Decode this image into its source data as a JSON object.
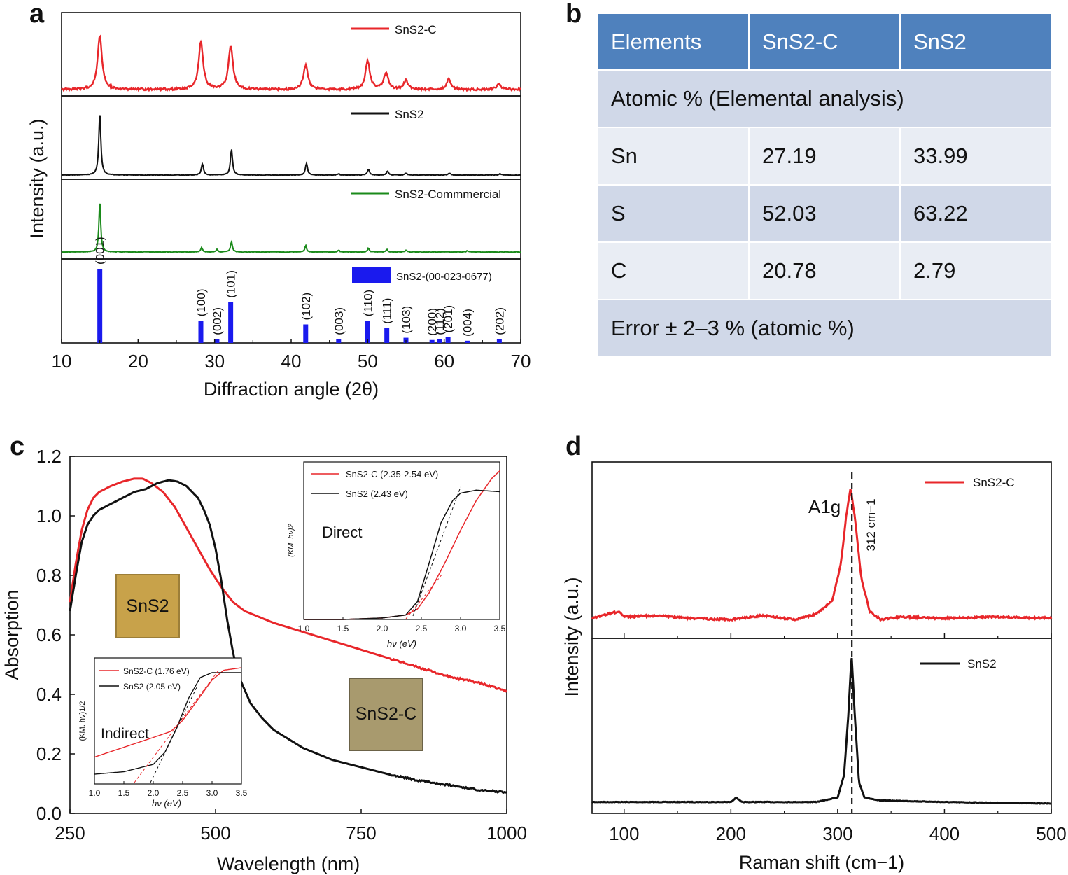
{
  "panel_letters": {
    "a": "a",
    "b": "b",
    "c": "c",
    "d": "d"
  },
  "colors": {
    "red": "#e8262a",
    "black": "#111111",
    "green": "#1a8a1a",
    "blue": "#1a1aee",
    "table_header": "#4f81bd"
  },
  "panel_a": {
    "ylabel": "Intensity (a.u.)",
    "xlabel": "Diffraction angle (2θ)",
    "legend_snsc": "SnS2-C",
    "legend_sns2": "SnS2",
    "legend_comm": "SnS2-Commmercial",
    "legend_ref": "SnS2-(00-023-0677)",
    "xticks": [
      "10",
      "20",
      "30",
      "40",
      "50",
      "60",
      "70"
    ]
  },
  "panel_b": {
    "headers": [
      "Elements",
      "SnS2-C",
      "SnS2"
    ],
    "section_title": "Atomic % (Elemental analysis)",
    "rows": [
      {
        "element": "Sn",
        "snsc": "27.19",
        "sns2": "33.99"
      },
      {
        "element": "S",
        "snsc": "52.03",
        "sns2": "63.22"
      },
      {
        "element": "C",
        "snsc": "20.78",
        "sns2": "2.79"
      }
    ],
    "footer": "Error ± 2–3 % (atomic %)"
  },
  "panel_c": {
    "ylabel": "Absorption",
    "xlabel": "Wavelength (nm)",
    "xticks": [
      "250",
      "500",
      "750",
      "1000"
    ],
    "yticks": [
      "0.0",
      "0.2",
      "0.4",
      "0.6",
      "0.8",
      "1.0",
      "1.2"
    ],
    "photo1_label": "SnS2",
    "photo2_label": "SnS2-C",
    "inset_direct": {
      "legend_red": "SnS2-C (2.35-2.54 eV)",
      "legend_black": "SnS2 (2.43 eV)",
      "label": "Direct",
      "ylabel": "(KM. hν)2",
      "xlabel": "hν (eV)",
      "xticks": [
        "1.0",
        "1.5",
        "2.0",
        "2.5",
        "3.0",
        "3.5"
      ]
    },
    "inset_indirect": {
      "legend_red": "SnS2-C (1.76 eV)",
      "legend_black": "SnS2 (2.05 eV)",
      "label": "Indirect",
      "ylabel": "(KM. hν)1/2",
      "xlabel": "hν (eV)",
      "xticks": [
        "1.0",
        "1.5",
        "2.0",
        "2.5",
        "3.0",
        "3.5"
      ]
    }
  },
  "panel_d": {
    "ylabel": "Intensity (a.u.)",
    "xlabel": "Raman shift (cm−1)",
    "xticks": [
      "100",
      "200",
      "300",
      "400",
      "500"
    ],
    "peak_label": "A1g",
    "peak_pos_label": "312 cm−1",
    "legend_red": "SnS2-C",
    "legend_black": "SnS2"
  },
  "chart_data": [
    {
      "panel": "a",
      "type": "line",
      "title": "",
      "xlabel": "Diffraction angle (2θ)",
      "ylabel": "Intensity (a.u.)",
      "xlim": [
        10,
        70
      ],
      "series": [
        {
          "name": "SnS2-C",
          "peaks_2theta": [
            15.0,
            28.2,
            32.1,
            41.9,
            50.0,
            52.4,
            55.0,
            60.6,
            67.1
          ],
          "rel_heights": [
            0.95,
            0.85,
            0.78,
            0.43,
            0.51,
            0.29,
            0.16,
            0.18,
            0.09
          ]
        },
        {
          "name": "SnS2",
          "peaks_2theta": [
            15.0,
            28.4,
            32.2,
            42.0,
            46.2,
            50.1,
            52.6,
            55.0,
            60.7,
            67.3
          ],
          "rel_heights": [
            0.92,
            0.17,
            0.39,
            0.18,
            0.02,
            0.09,
            0.06,
            0.03,
            0.03,
            0.02
          ]
        },
        {
          "name": "SnS2-Commmercial",
          "peaks_2theta": [
            15.0,
            28.3,
            30.3,
            32.2,
            41.9,
            46.2,
            50.1,
            52.5,
            55.0,
            63.0
          ],
          "rel_heights": [
            0.8,
            0.07,
            0.04,
            0.17,
            0.1,
            0.03,
            0.06,
            0.04,
            0.03,
            0.02
          ]
        },
        {
          "name": "SnS2-(00-023-0677)",
          "type": "bar",
          "positions": [
            15.0,
            28.2,
            30.3,
            32.1,
            41.9,
            46.2,
            50.0,
            52.5,
            55.0,
            58.4,
            59.4,
            60.5,
            63.0,
            67.2
          ],
          "hkl": [
            "(001)",
            "(100)",
            "(002)",
            "(101)",
            "(102)",
            "(003)",
            "(110)",
            "(111)",
            "(103)",
            "(200)",
            "(112)",
            "(201)",
            "(004)",
            "(202)"
          ],
          "rel_intensity": [
            100,
            30,
            5,
            55,
            25,
            5,
            30,
            20,
            7,
            4,
            5,
            8,
            3,
            5
          ]
        }
      ]
    },
    {
      "panel": "c",
      "type": "line",
      "xlabel": "Wavelength (nm)",
      "ylabel": "Absorption",
      "xlim": [
        250,
        1000
      ],
      "ylim": [
        0,
        1.2
      ],
      "series": [
        {
          "name": "SnS2-C",
          "x": [
            250,
            260,
            270,
            280,
            290,
            300,
            320,
            340,
            360,
            375,
            390,
            410,
            430,
            450,
            470,
            490,
            510,
            530,
            550,
            600,
            650,
            700,
            750,
            800,
            850,
            900,
            950,
            1000
          ],
          "y": [
            0.71,
            0.84,
            0.95,
            1.02,
            1.06,
            1.08,
            1.1,
            1.115,
            1.125,
            1.125,
            1.11,
            1.08,
            1.03,
            0.96,
            0.89,
            0.82,
            0.76,
            0.71,
            0.68,
            0.64,
            0.61,
            0.58,
            0.55,
            0.52,
            0.49,
            0.46,
            0.44,
            0.41
          ]
        },
        {
          "name": "SnS2",
          "x": [
            250,
            260,
            270,
            280,
            290,
            300,
            320,
            340,
            360,
            380,
            400,
            420,
            435,
            450,
            460,
            470,
            480,
            490,
            500,
            510,
            520,
            530,
            540,
            560,
            580,
            600,
            650,
            700,
            750,
            800,
            850,
            900,
            950,
            1000
          ],
          "y": [
            0.68,
            0.8,
            0.91,
            0.97,
            1.0,
            1.02,
            1.04,
            1.06,
            1.08,
            1.09,
            1.11,
            1.12,
            1.115,
            1.1,
            1.08,
            1.06,
            1.02,
            0.97,
            0.89,
            0.78,
            0.65,
            0.54,
            0.46,
            0.37,
            0.32,
            0.28,
            0.22,
            0.18,
            0.155,
            0.13,
            0.11,
            0.095,
            0.08,
            0.07
          ]
        }
      ],
      "insets": [
        {
          "name": "Direct",
          "xlabel": "hν (eV)",
          "ylabel": "(KM. hν)2",
          "xlim": [
            1.0,
            3.5
          ],
          "series": [
            {
              "name": "SnS2-C (2.35-2.54 eV)",
              "x": [
                1.0,
                1.5,
                2.0,
                2.3,
                2.45,
                2.6,
                2.8,
                3.0,
                3.2,
                3.4,
                3.5
              ],
              "y": [
                0.0,
                0.0,
                0.01,
                0.03,
                0.07,
                0.18,
                0.38,
                0.6,
                0.8,
                0.95,
                1.0
              ]
            },
            {
              "name": "SnS2 (2.43 eV)",
              "x": [
                1.0,
                1.5,
                2.0,
                2.3,
                2.45,
                2.6,
                2.75,
                2.9,
                3.0,
                3.2,
                3.5
              ],
              "y": [
                0.0,
                0.0,
                0.01,
                0.03,
                0.12,
                0.38,
                0.65,
                0.8,
                0.85,
                0.87,
                0.86
              ]
            }
          ]
        },
        {
          "name": "Indirect",
          "xlabel": "hν (eV)",
          "ylabel": "(KM. hν)1/2",
          "xlim": [
            1.0,
            3.5
          ],
          "series": [
            {
              "name": "SnS2-C (1.76 eV)",
              "x": [
                1.0,
                1.5,
                2.0,
                2.3,
                2.5,
                2.7,
                3.0,
                3.2,
                3.5
              ],
              "y": [
                0.22,
                0.3,
                0.38,
                0.43,
                0.52,
                0.65,
                0.85,
                0.93,
                0.95
              ]
            },
            {
              "name": "SnS2 (2.05 eV)",
              "x": [
                1.0,
                1.5,
                2.0,
                2.2,
                2.4,
                2.6,
                2.8,
                3.0,
                3.5
              ],
              "y": [
                0.08,
                0.1,
                0.16,
                0.26,
                0.46,
                0.7,
                0.87,
                0.91,
                0.91
              ]
            }
          ]
        }
      ]
    },
    {
      "panel": "d",
      "type": "line",
      "xlabel": "Raman shift (cm−1)",
      "ylabel": "Intensity (a.u.)",
      "xlim": [
        70,
        500
      ],
      "series": [
        {
          "name": "SnS2-C",
          "x": [
            70,
            95,
            100,
            130,
            160,
            200,
            230,
            260,
            280,
            295,
            303,
            308,
            312,
            316,
            322,
            330,
            340,
            360,
            400,
            450,
            500
          ],
          "y": [
            0.05,
            0.1,
            0.06,
            0.07,
            0.05,
            0.04,
            0.07,
            0.04,
            0.08,
            0.18,
            0.45,
            0.8,
            1.0,
            0.8,
            0.35,
            0.1,
            0.04,
            0.06,
            0.05,
            0.06,
            0.05
          ]
        },
        {
          "name": "SnS2",
          "x": [
            70,
            150,
            200,
            205,
            210,
            280,
            300,
            306,
            310,
            313,
            316,
            320,
            325,
            340,
            400,
            500
          ],
          "y": [
            0.02,
            0.02,
            0.02,
            0.05,
            0.02,
            0.02,
            0.05,
            0.2,
            0.6,
            1.0,
            0.6,
            0.15,
            0.05,
            0.03,
            0.02,
            0.01
          ]
        }
      ],
      "annotations": [
        {
          "text": "A1g",
          "x": 312
        },
        {
          "text": "312 cm−1",
          "x": 312
        }
      ]
    }
  ]
}
